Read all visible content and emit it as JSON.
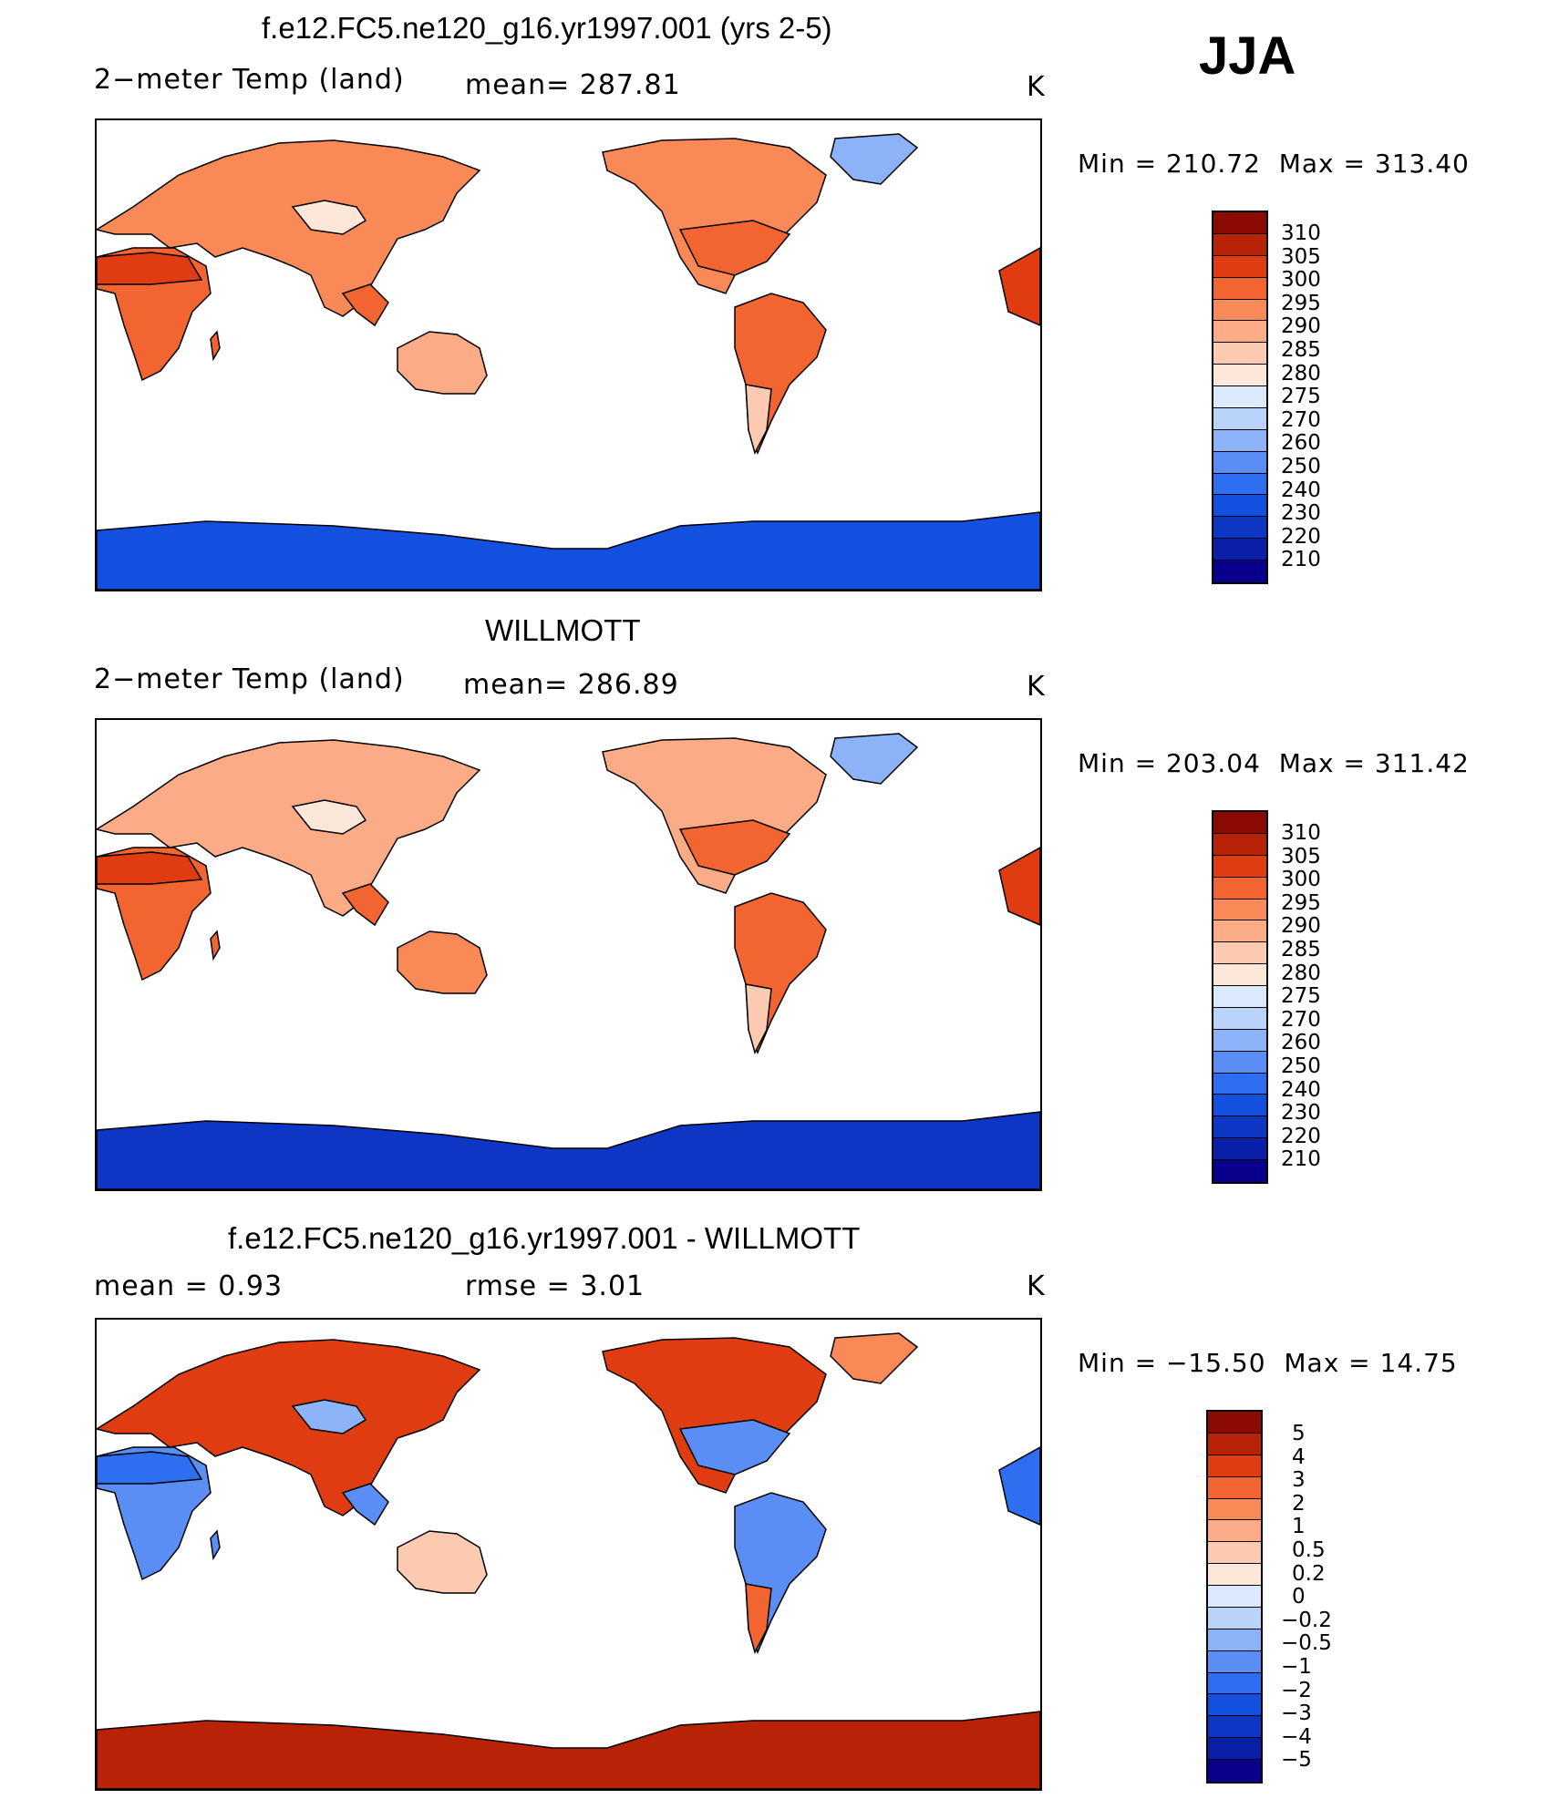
{
  "season": "JJA",
  "colors": {
    "ocean": "#ffffff",
    "coast": "#000000",
    "abs_scale": [
      "#08008c",
      "#0a1fa8",
      "#0d36c4",
      "#1350e0",
      "#2e6ef0",
      "#5a8ef5",
      "#8cb2f7",
      "#b9d3fa",
      "#dbe9fc",
      "#fde7d8",
      "#fccab0",
      "#fbab85",
      "#f98a58",
      "#f26430",
      "#e03c12",
      "#b82308",
      "#8c0a04"
    ],
    "diff_scale": [
      "#08008c",
      "#0a1fa8",
      "#0d36c4",
      "#1350e0",
      "#2e6ef0",
      "#5a8ef5",
      "#8cb2f7",
      "#b9d3fa",
      "#dbe9fc",
      "#fde7d8",
      "#fccab0",
      "#fbab85",
      "#f98a58",
      "#f26430",
      "#e03c12",
      "#b82308",
      "#8c0a04"
    ]
  },
  "panels": [
    {
      "title": "f.e12.FC5.ne120_g16.yr1997.001 (yrs 2-5)",
      "left_label": "2−meter Temp (land)",
      "mid_label": "mean=  287.81",
      "units": "K",
      "min_label": "Min  =  210.72",
      "max_label": "Max  =  313.40",
      "colorbar_labels": [
        "310",
        "305",
        "300",
        "295",
        "290",
        "285",
        "280",
        "275",
        "270",
        "260",
        "250",
        "240",
        "230",
        "220",
        "210"
      ],
      "fills": {
        "north": "#f98a58",
        "tropics": "#f26430",
        "desert": "#e03c12",
        "tibet": "#fde7d8",
        "greenland": "#8cb2f7",
        "antarctic": "#1350e0",
        "australia": "#fbab85",
        "patagonia": "#fccab0"
      }
    },
    {
      "title": "WILLMOTT",
      "left_label": "2−meter Temp (land)",
      "mid_label": "mean=  286.89",
      "units": "K",
      "min_label": "Min  =  203.04",
      "max_label": "Max  =  311.42",
      "colorbar_labels": [
        "310",
        "305",
        "300",
        "295",
        "290",
        "285",
        "280",
        "275",
        "270",
        "260",
        "250",
        "240",
        "230",
        "220",
        "210"
      ],
      "fills": {
        "north": "#fbab85",
        "tropics": "#f26430",
        "desert": "#e03c12",
        "tibet": "#fde7d8",
        "greenland": "#8cb2f7",
        "antarctic": "#0d36c4",
        "australia": "#f98a58",
        "patagonia": "#fccab0"
      }
    },
    {
      "title": "f.e12.FC5.ne120_g16.yr1997.001 - WILLMOTT",
      "left_label": "mean =       0.93",
      "mid_label": "rmse =       3.01",
      "units": "K",
      "min_label": "Min  =  −15.50",
      "max_label": "Max  =      14.75",
      "colorbar_labels": [
        "5",
        "4",
        "3",
        "2",
        "1",
        "0.5",
        "0.2",
        "0",
        "−0.2",
        "−0.5",
        "−1",
        "−2",
        "−3",
        "−4",
        "−5"
      ],
      "fills": {
        "north": "#e03c12",
        "tropics": "#5a8ef5",
        "desert": "#2e6ef0",
        "tibet": "#8cb2f7",
        "greenland": "#f98a58",
        "antarctic": "#b82308",
        "australia": "#fccab0",
        "patagonia": "#f26430"
      }
    }
  ]
}
